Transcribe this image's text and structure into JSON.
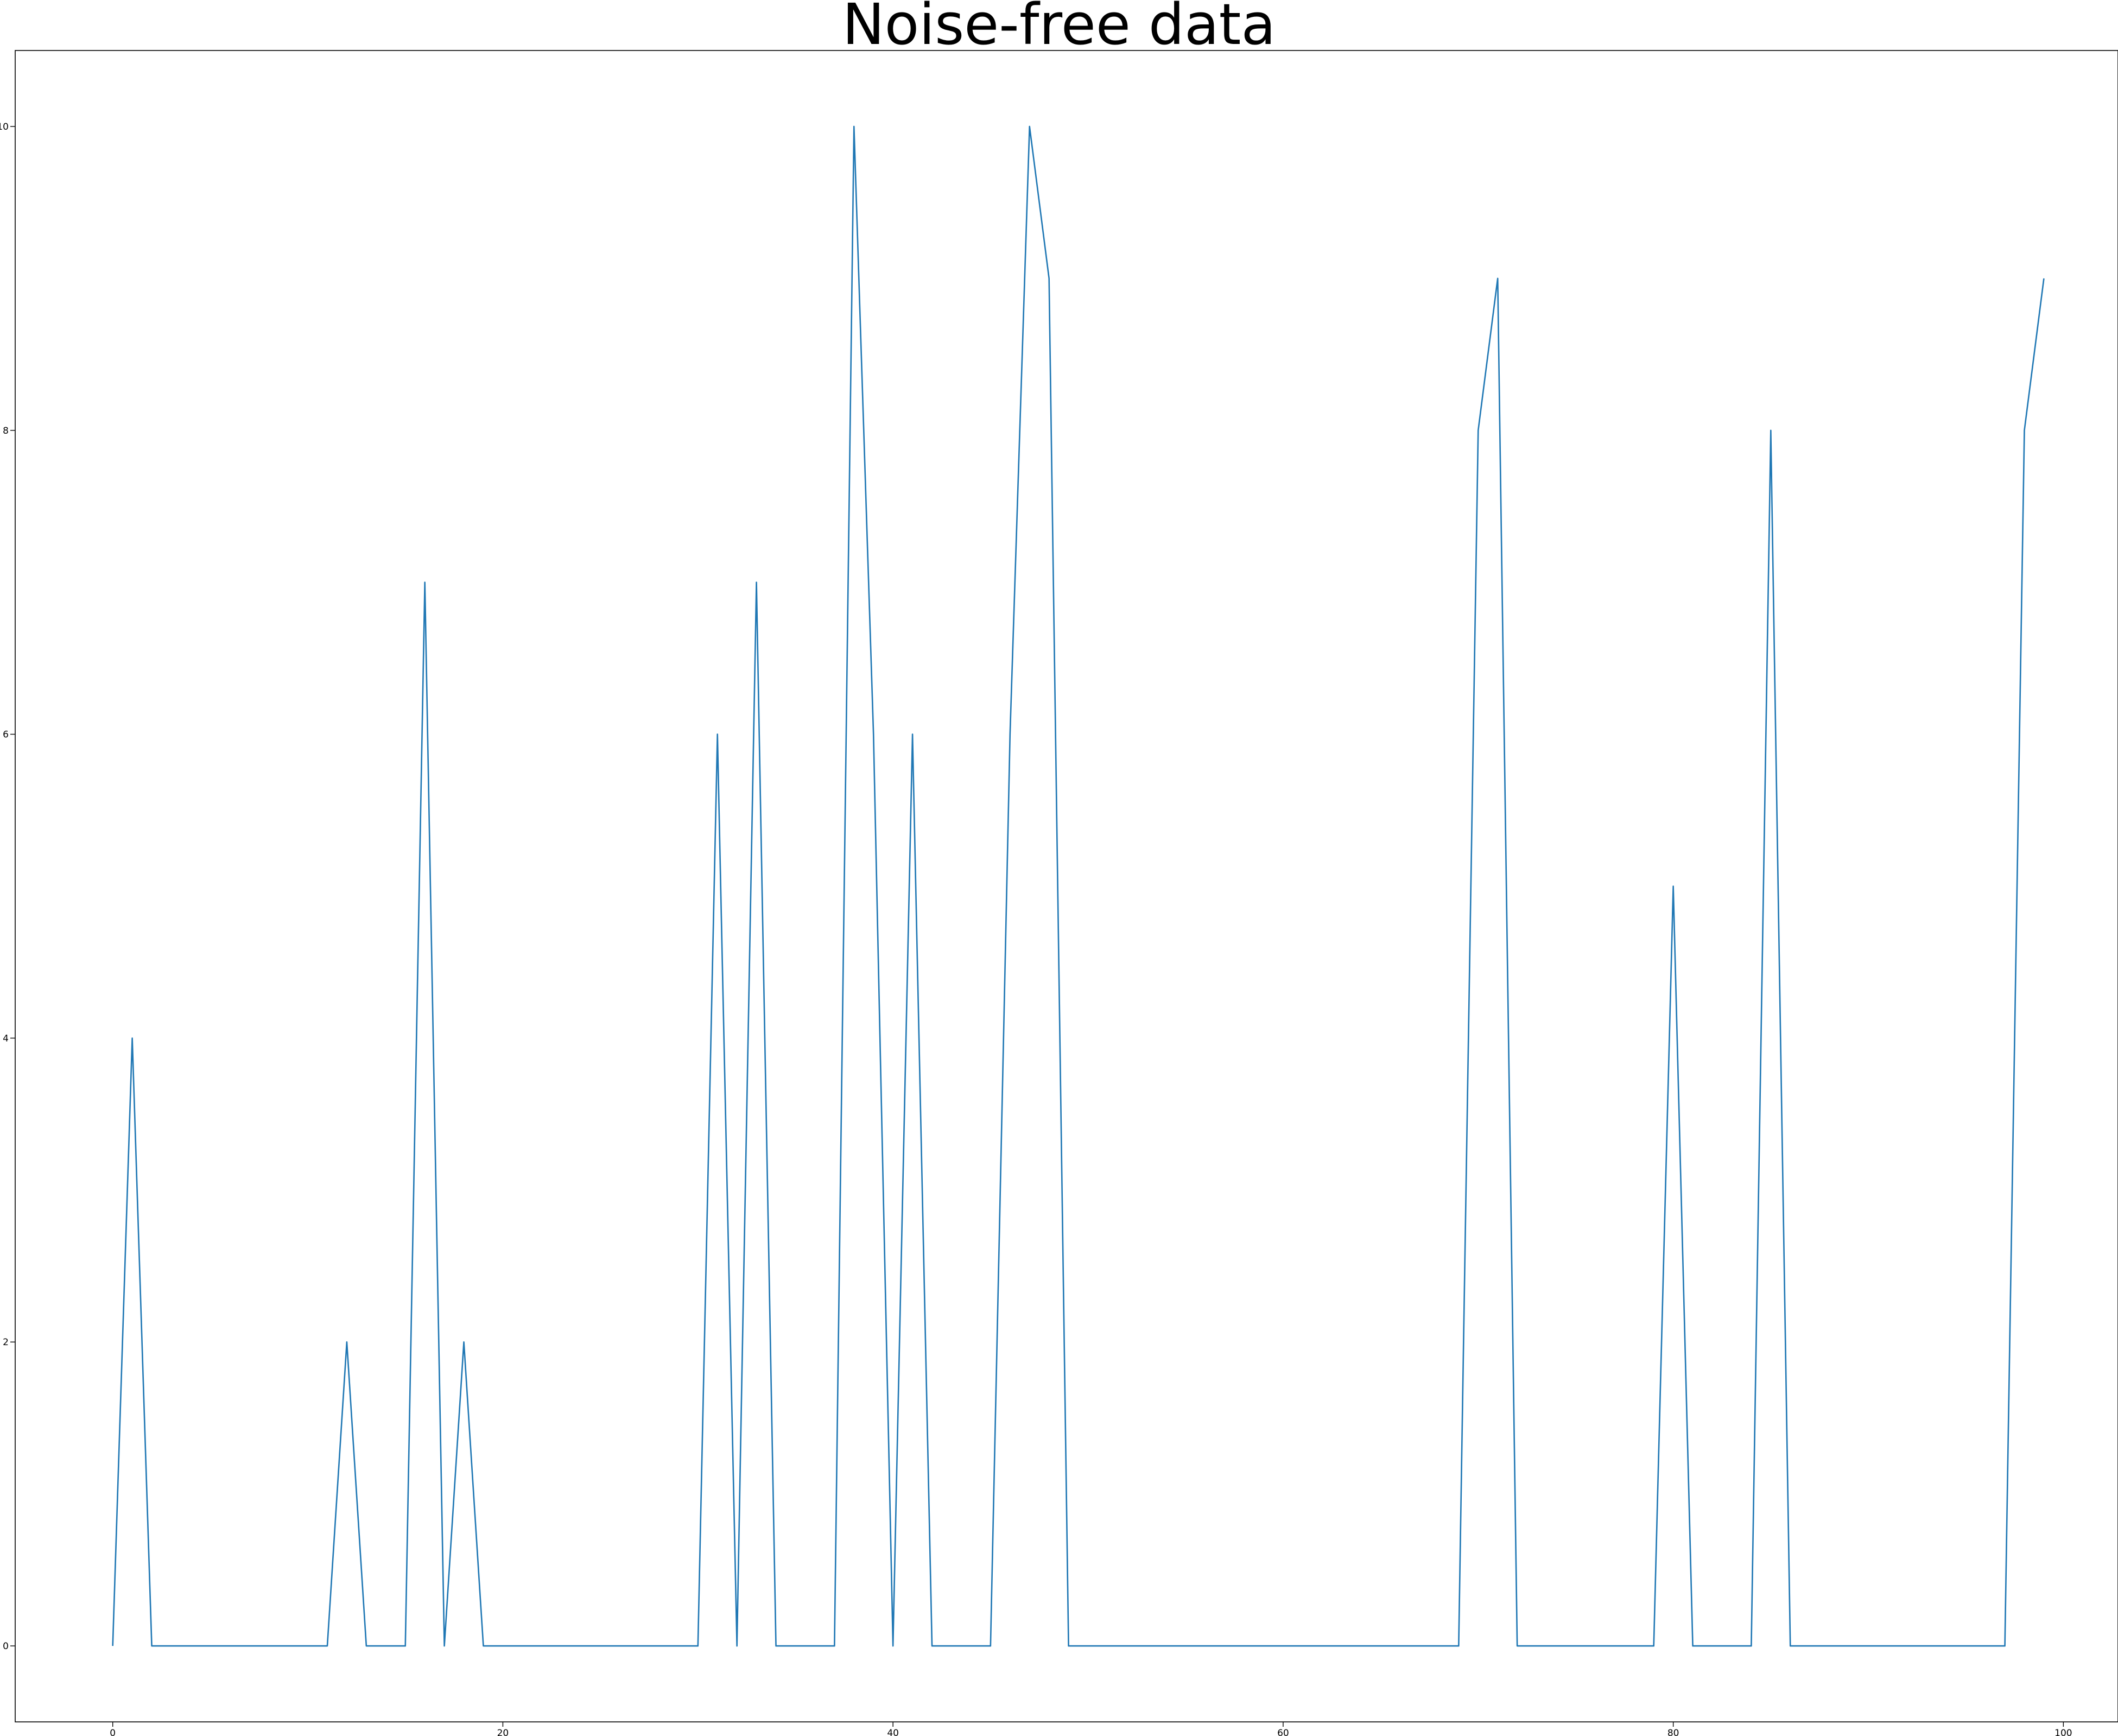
{
  "chart_data": {
    "type": "line",
    "title": "Noise-free data",
    "xlabel": "",
    "ylabel": "",
    "xlim": [
      -5,
      102.8
    ],
    "ylim": [
      -0.5,
      10.5
    ],
    "xticks": [
      0,
      20,
      40,
      60,
      80,
      100
    ],
    "yticks": [
      0,
      2,
      4,
      6,
      8,
      10
    ],
    "grid": false,
    "series": [
      {
        "color": "#1f77b4",
        "x": [
          0,
          1,
          2,
          3,
          4,
          5,
          6,
          7,
          8,
          9,
          10,
          11,
          12,
          13,
          14,
          15,
          16,
          17,
          18,
          19,
          20,
          21,
          22,
          23,
          24,
          25,
          26,
          27,
          28,
          29,
          30,
          31,
          32,
          33,
          34,
          35,
          36,
          37,
          38,
          39,
          40,
          41,
          42,
          43,
          44,
          45,
          46,
          47,
          48,
          49,
          50,
          51,
          52,
          53,
          54,
          55,
          56,
          57,
          58,
          59,
          60,
          61,
          62,
          63,
          64,
          65,
          66,
          67,
          68,
          69,
          70,
          71,
          72,
          73,
          74,
          75,
          76,
          77,
          78,
          79,
          80,
          81,
          82,
          83,
          84,
          85,
          86,
          87,
          88,
          89,
          90,
          91,
          92,
          93,
          94,
          95,
          96,
          97,
          98,
          99
        ],
        "values": [
          0,
          4,
          0,
          0,
          0,
          0,
          0,
          0,
          0,
          0,
          0,
          0,
          2,
          0,
          0,
          0,
          7,
          0,
          2,
          0,
          0,
          0,
          0,
          0,
          0,
          0,
          0,
          0,
          0,
          0,
          0,
          6,
          0,
          7,
          0,
          0,
          0,
          0,
          10,
          6,
          0,
          6,
          0,
          0,
          0,
          0,
          6,
          10,
          9,
          0,
          0,
          0,
          0,
          0,
          0,
          0,
          0,
          0,
          0,
          0,
          0,
          0,
          0,
          0,
          0,
          0,
          0,
          0,
          0,
          0,
          8,
          9,
          0,
          0,
          0,
          0,
          0,
          0,
          0,
          0,
          5,
          0,
          0,
          0,
          0,
          8,
          0,
          0,
          0,
          0,
          0,
          0,
          0,
          0,
          0,
          0,
          0,
          0,
          8,
          9
        ]
      }
    ]
  }
}
